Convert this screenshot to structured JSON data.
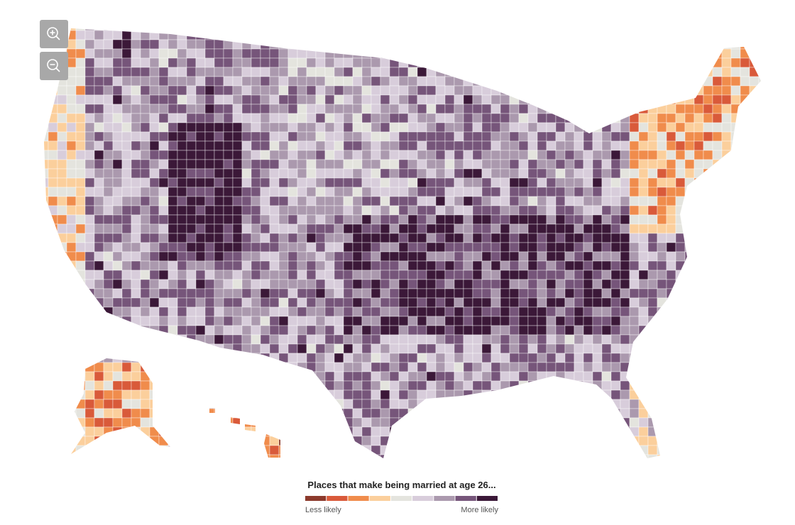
{
  "legend": {
    "title": "Places that make being married at age 26...",
    "low_label": "Less likely",
    "high_label": "More likely",
    "colors": [
      "#8c3a2c",
      "#d95a3a",
      "#f08c4c",
      "#fbcf9c",
      "#e4e4de",
      "#d8cddb",
      "#ab99ae",
      "#76557a",
      "#3b1838"
    ]
  }
}
